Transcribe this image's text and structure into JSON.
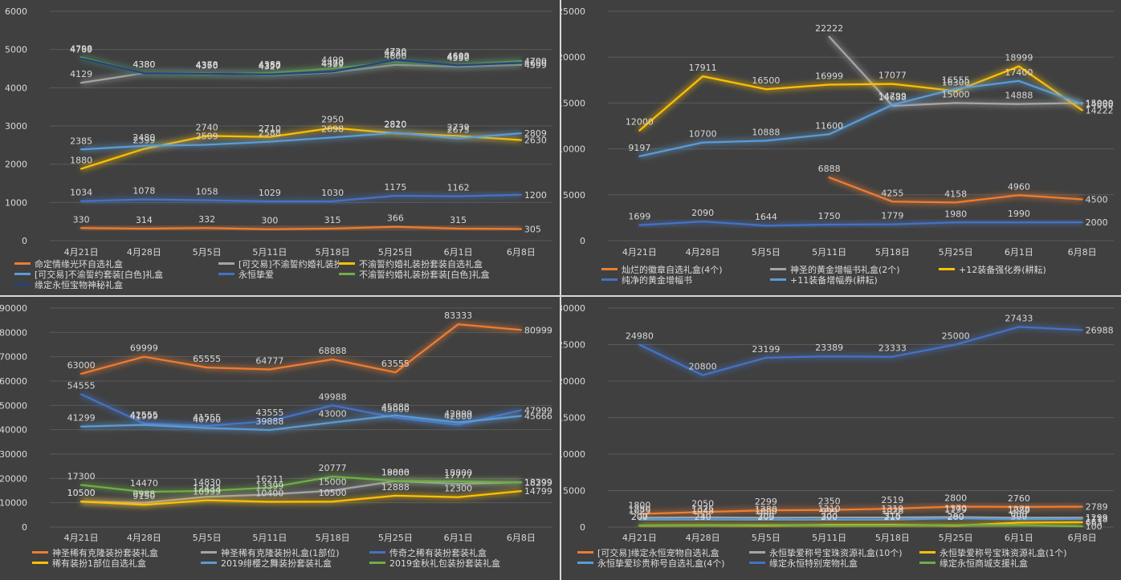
{
  "chart_data": [
    {
      "type": "line",
      "categories": [
        "4月21日",
        "4月28日",
        "5月5日",
        "5月11日",
        "5月18日",
        "5月25日",
        "6月1日",
        "6月8日"
      ],
      "ylim": [
        0,
        6000
      ],
      "yticks": [
        0,
        1000,
        2000,
        3000,
        4000,
        5000,
        6000
      ],
      "legend_position": "bottom",
      "series": [
        {
          "name": "命定情缘光环自选礼盒",
          "color": "#ed7d31",
          "values": [
            330,
            314,
            332,
            300,
            315,
            366,
            315,
            305
          ]
        },
        {
          "name": "[可交易]不渝誓约婚礼装扮套装礼盒",
          "color": "#a5a5a5",
          "values": [
            4129,
            4380,
            4378,
            4327,
            4399,
            4600,
            4550,
            4599
          ]
        },
        {
          "name": "不渝誓约婚礼装扮套装自选礼盒",
          "color": "#ffc000",
          "values": [
            1880,
            2399,
            2740,
            2710,
            2950,
            2810,
            2739,
            2630
          ]
        },
        {
          "name": "[可交易]不渝誓约套装[白色]礼盒",
          "color": "#5b9bd5",
          "values": [
            2385,
            2480,
            2509,
            2588,
            2698,
            2820,
            2675,
            2809
          ]
        },
        {
          "name": "永恒挚爱",
          "color": "#4472c4",
          "values": [
            1034,
            1078,
            1058,
            1029,
            1030,
            1175,
            1162,
            1200
          ]
        },
        {
          "name": "不渝誓约婚礼装扮套装[白色]礼盒",
          "color": "#70ad47",
          "values": [
            4798,
            4380,
            4350,
            4388,
            4499,
            4680,
            4600,
            4700
          ]
        },
        {
          "name": "缘定永恒宝物神秘礼盒",
          "color": "#264478",
          "values": [
            4769,
            4380,
            4366,
            4350,
            4420,
            4720,
            4587,
            4650
          ]
        }
      ]
    },
    {
      "type": "line",
      "categories": [
        "4月21日",
        "4月28日",
        "5月5日",
        "5月11日",
        "5月18日",
        "5月25日",
        "6月1日",
        "6月8日"
      ],
      "ylim": [
        0,
        25000
      ],
      "yticks": [
        0,
        5000,
        10000,
        15000,
        20000,
        25000
      ],
      "legend_position": "bottom",
      "series": [
        {
          "name": "灿烂的徽章自选礼盒(4个)",
          "color": "#ed7d31",
          "values": [
            null,
            null,
            null,
            6888,
            4255,
            4158,
            4960,
            4500
          ]
        },
        {
          "name": "神圣的黄金增幅书礼盒(2个)",
          "color": "#a5a5a5",
          "values": [
            null,
            null,
            null,
            22222,
            14688,
            15000,
            14888,
            15000
          ]
        },
        {
          "name": "+12装备强化券(耕耘)",
          "color": "#ffc000",
          "values": [
            12000,
            17911,
            16500,
            16999,
            17077,
            16300,
            18999,
            14222
          ]
        },
        {
          "name": "纯净的黄金增幅书",
          "color": "#4472c4",
          "values": [
            1699,
            2090,
            1644,
            1750,
            1779,
            1980,
            1990,
            2000
          ]
        },
        {
          "name": "+11装备增幅券(耕耘)",
          "color": "#5b9bd5",
          "values": [
            9197,
            10700,
            10888,
            11600,
            14799,
            16555,
            17400,
            14888
          ]
        }
      ]
    },
    {
      "type": "line",
      "categories": [
        "4月21日",
        "4月28日",
        "5月5日",
        "5月11日",
        "5月18日",
        "5月25日",
        "6月1日",
        "6月8日"
      ],
      "ylim": [
        0,
        90000
      ],
      "yticks": [
        0,
        10000,
        20000,
        30000,
        40000,
        50000,
        60000,
        70000,
        80000,
        90000
      ],
      "legend_position": "bottom",
      "series": [
        {
          "name": "神圣稀有克隆装扮套装礼盒",
          "color": "#ed7d31",
          "values": [
            63000,
            69999,
            65555,
            64777,
            68888,
            63555,
            83333,
            80999
          ]
        },
        {
          "name": "神圣稀有克隆装扮礼盒(1部位)",
          "color": "#a5a5a5",
          "values": [
            10500,
            9988,
            12433,
            13399,
            15000,
            18888,
            17777,
            18399
          ]
        },
        {
          "name": "传奇之稀有装扮套装礼盒",
          "color": "#4472c4",
          "values": [
            54555,
            42555,
            41555,
            43555,
            49988,
            45000,
            42000,
            47999
          ]
        },
        {
          "name": "稀有装扮1部位自选礼盒",
          "color": "#ffc000",
          "values": [
            10500,
            9150,
            10999,
            10400,
            10500,
            12888,
            12300,
            14799
          ]
        },
        {
          "name": "2019绯樱之舞装扮套装礼盒",
          "color": "#5b9bd5",
          "values": [
            41299,
            41999,
            40700,
            39888,
            43000,
            45888,
            42999,
            45666
          ]
        },
        {
          "name": "2019金秋礼包装扮套装礼盒",
          "color": "#70ad47",
          "values": [
            17300,
            14470,
            14830,
            16211,
            20777,
            19000,
            18800,
            18299
          ]
        }
      ]
    },
    {
      "type": "line",
      "categories": [
        "4月21日",
        "4月28日",
        "5月5日",
        "5月11日",
        "5月18日",
        "5月25日",
        "6月1日",
        "6月8日"
      ],
      "ylim": [
        0,
        30000
      ],
      "yticks": [
        0,
        5000,
        10000,
        15000,
        20000,
        25000,
        30000
      ],
      "legend_position": "bottom",
      "series": [
        {
          "name": "[可交易]缘定永恒宠物自选礼盒",
          "color": "#ed7d31",
          "values": [
            1800,
            2050,
            2299,
            2350,
            2519,
            2800,
            2760,
            2789
          ]
        },
        {
          "name": "永恒挚爱称号宝珠资源礼盒(10个)",
          "color": "#a5a5a5",
          "values": [
            1280,
            1325,
            1280,
            1310,
            1319,
            1370,
            1278,
            1299
          ]
        },
        {
          "name": "永恒挚爱称号宝珠资源礼盒(1个)",
          "color": "#ffc000",
          "values": [
            207,
            240,
            205,
            300,
            315,
            200,
            600,
            663
          ]
        },
        {
          "name": "永恒挚爱珍贵称号自选礼盒(4个)",
          "color": "#5b9bd5",
          "values": [
            1025,
            1048,
            1000,
            999,
            1026,
            1199,
            1089,
            1118
          ]
        },
        {
          "name": "缘定永恒特别宠物礼盒",
          "color": "#4472c4",
          "values": [
            24980,
            20800,
            23199,
            23389,
            23333,
            25000,
            27433,
            26988
          ]
        },
        {
          "name": "缘定永恒商城支援礼盒",
          "color": "#70ad47",
          "values": [
            200,
            230,
            300,
            200,
            210,
            280,
            300,
            100
          ]
        }
      ]
    }
  ]
}
